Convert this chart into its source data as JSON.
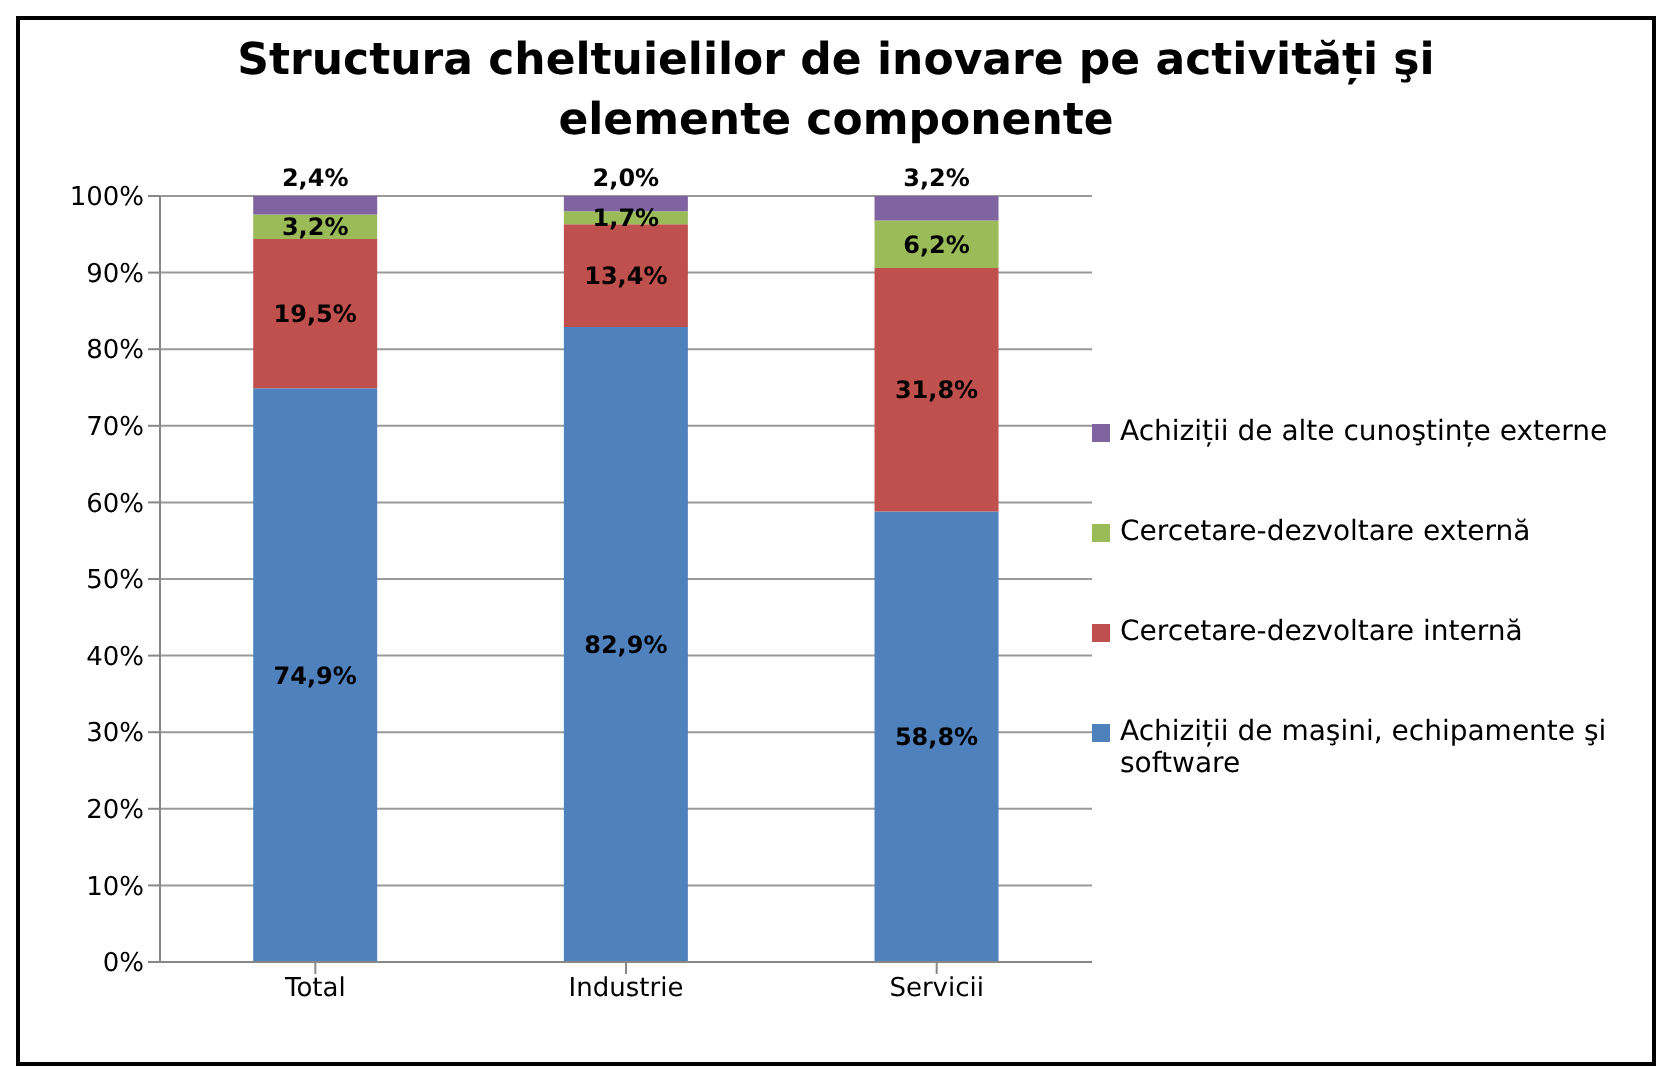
{
  "chart_data": {
    "type": "bar",
    "stacked": true,
    "title": "Structura cheltuielilor de inovare pe activități şi elemente componente",
    "categories": [
      "Total",
      "Industrie",
      "Servicii"
    ],
    "series": [
      {
        "name": "Achiziții de maşini, echipamente şi software",
        "color": "#4f81bd",
        "values": [
          74.9,
          82.9,
          58.8
        ],
        "value_labels": [
          "74,9%",
          "82,9%",
          "58,8%"
        ]
      },
      {
        "name": "Cercetare-dezvoltare internă",
        "color": "#c0504d",
        "values": [
          19.5,
          13.4,
          31.8
        ],
        "value_labels": [
          "19,5%",
          "13,4%",
          "31,8%"
        ]
      },
      {
        "name": "Cercetare-dezvoltare externă",
        "color": "#9bbb59",
        "values": [
          3.2,
          1.7,
          6.2
        ],
        "value_labels": [
          "3,2%",
          "1,7%",
          "6,2%"
        ]
      },
      {
        "name": "Achiziții de alte cunoştințe externe",
        "color": "#8064a2",
        "values": [
          2.4,
          2.0,
          3.2
        ],
        "value_labels": [
          "2,4%",
          "2,0%",
          "3,2%"
        ]
      }
    ],
    "ylim": [
      0,
      100
    ],
    "yticks": [
      {
        "value": 0,
        "label": "0%"
      },
      {
        "value": 10,
        "label": "10%"
      },
      {
        "value": 20,
        "label": "20%"
      },
      {
        "value": 30,
        "label": "30%"
      },
      {
        "value": 40,
        "label": "40%"
      },
      {
        "value": 50,
        "label": "50%"
      },
      {
        "value": 60,
        "label": "60%"
      },
      {
        "value": 70,
        "label": "70%"
      },
      {
        "value": 80,
        "label": "80%"
      },
      {
        "value": 90,
        "label": "90%"
      },
      {
        "value": 100,
        "label": "100%"
      }
    ],
    "grid": "y",
    "legend": "right"
  }
}
